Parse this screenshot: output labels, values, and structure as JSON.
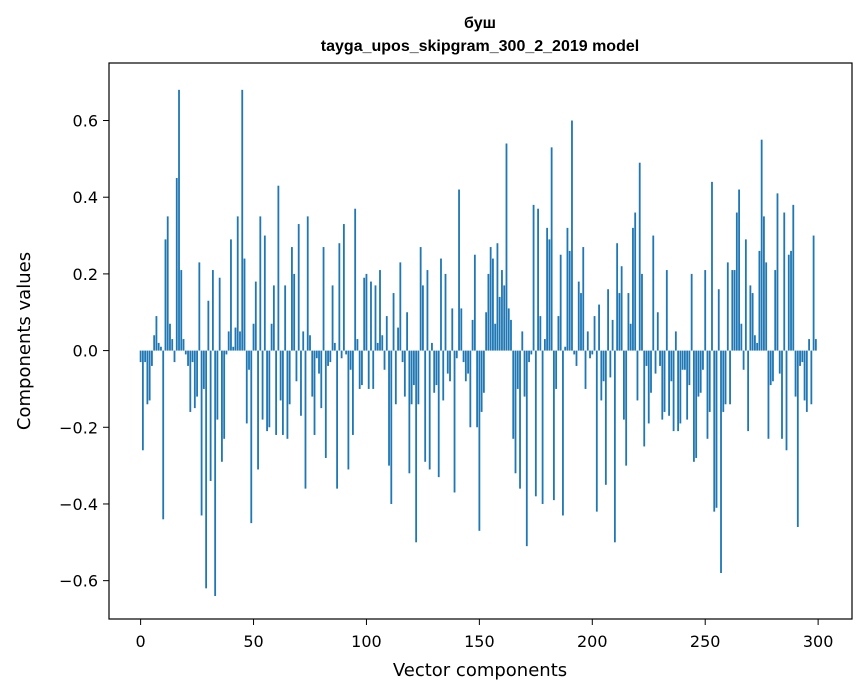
{
  "chart_data": {
    "type": "bar",
    "title": "буш",
    "subtitle": "tayga_upos_skipgram_300_2_2019 model",
    "xlabel": "Vector components",
    "ylabel": "Components values",
    "xlim": [
      -14,
      315
    ],
    "ylim": [
      -0.7,
      0.75
    ],
    "x_ticks": [
      {
        "value": 0,
        "label": "0"
      },
      {
        "value": 50,
        "label": "50"
      },
      {
        "value": 100,
        "label": "100"
      },
      {
        "value": 150,
        "label": "150"
      },
      {
        "value": 200,
        "label": "200"
      },
      {
        "value": 250,
        "label": "250"
      },
      {
        "value": 300,
        "label": "300"
      }
    ],
    "y_ticks": [
      {
        "value": -0.6,
        "label": "−0.6"
      },
      {
        "value": -0.4,
        "label": "−0.4"
      },
      {
        "value": -0.2,
        "label": "−0.2"
      },
      {
        "value": 0.0,
        "label": "0.0"
      },
      {
        "value": 0.2,
        "label": "0.2"
      },
      {
        "value": 0.4,
        "label": "0.4"
      },
      {
        "value": 0.6,
        "label": "0.6"
      }
    ],
    "grid": false,
    "bar_color": "#1f77b4",
    "values": [
      -0.03,
      -0.26,
      -0.03,
      -0.14,
      -0.13,
      -0.04,
      0.04,
      0.09,
      0.02,
      0.01,
      -0.44,
      0.29,
      0.35,
      0.07,
      0.03,
      -0.03,
      0.45,
      0.68,
      0.21,
      0.03,
      -0.01,
      -0.04,
      -0.16,
      -0.03,
      -0.15,
      -0.12,
      0.23,
      -0.43,
      -0.1,
      -0.62,
      0.13,
      -0.34,
      0.21,
      -0.64,
      -0.18,
      0.19,
      -0.29,
      -0.23,
      -0.01,
      0.05,
      0.29,
      0.01,
      0.06,
      0.35,
      0.05,
      0.68,
      0.24,
      -0.19,
      -0.05,
      -0.45,
      0.07,
      0.18,
      -0.31,
      0.35,
      -0.18,
      0.3,
      -0.21,
      -0.2,
      0.07,
      0.17,
      -0.22,
      0.43,
      -0.13,
      -0.22,
      0.17,
      -0.23,
      -0.14,
      0.27,
      0.2,
      -0.08,
      0.33,
      -0.17,
      0.05,
      -0.36,
      0.35,
      0.04,
      -0.12,
      -0.22,
      -0.02,
      -0.06,
      -0.15,
      0.27,
      -0.28,
      -0.04,
      -0.03,
      0.17,
      0.02,
      -0.36,
      0.28,
      -0.02,
      0.33,
      -0.01,
      -0.31,
      -0.05,
      -0.22,
      0.37,
      0.03,
      -0.1,
      -0.09,
      0.19,
      0.2,
      -0.1,
      0.18,
      -0.1,
      0.17,
      0.02,
      0.21,
      0.04,
      -0.05,
      0.09,
      -0.3,
      -0.4,
      0.15,
      -0.14,
      0.06,
      0.23,
      -0.03,
      -0.12,
      0.1,
      -0.32,
      -0.14,
      -0.09,
      -0.5,
      -0.14,
      0.27,
      0.17,
      -0.29,
      0.21,
      -0.31,
      0.02,
      -0.11,
      -0.09,
      -0.33,
      0.24,
      -0.13,
      0.2,
      -0.06,
      -0.08,
      0.11,
      -0.37,
      -0.02,
      0.42,
      0.11,
      -0.03,
      -0.08,
      -0.06,
      -0.2,
      0.08,
      0.25,
      -0.2,
      -0.47,
      -0.16,
      -0.11,
      0.1,
      0.2,
      0.27,
      0.24,
      0.07,
      0.28,
      0.14,
      0.21,
      0.17,
      0.54,
      0.11,
      0.08,
      -0.23,
      -0.32,
      -0.1,
      -0.36,
      0.05,
      -0.12,
      -0.51,
      -0.03,
      -0.01,
      0.38,
      -0.38,
      0.37,
      0.09,
      -0.4,
      0.03,
      0.32,
      0.29,
      0.53,
      -0.39,
      -0.1,
      0.09,
      0.25,
      -0.43,
      0.01,
      0.32,
      0.26,
      0.6,
      -0.01,
      -0.04,
      0.18,
      0.15,
      0.27,
      -0.1,
      0.05,
      -0.02,
      -0.01,
      0.09,
      -0.42,
      0.12,
      -0.13,
      -0.08,
      -0.35,
      0.16,
      -0.07,
      0.08,
      -0.5,
      0.28,
      0.15,
      0.22,
      -0.18,
      -0.3,
      0.15,
      0.07,
      0.32,
      0.36,
      -0.13,
      0.49,
      0.2,
      -0.25,
      -0.04,
      -0.19,
      -0.11,
      0.3,
      -0.06,
      0.1,
      -0.04,
      -0.18,
      -0.16,
      0.21,
      -0.17,
      -0.08,
      -0.21,
      0.05,
      -0.21,
      -0.19,
      -0.05,
      -0.05,
      -0.18,
      -0.09,
      0.2,
      -0.29,
      -0.28,
      -0.12,
      -0.11,
      -0.05,
      0.21,
      -0.23,
      -0.16,
      0.44,
      -0.42,
      -0.41,
      0.16,
      -0.58,
      -0.16,
      -0.14,
      0.23,
      -0.14,
      0.21,
      0.21,
      0.36,
      0.42,
      0.07,
      -0.05,
      0.29,
      -0.21,
      0.17,
      0.15,
      0.04,
      0.02,
      0.26,
      0.55,
      0.35,
      0.23,
      -0.23,
      -0.09,
      -0.08,
      0.21,
      0.41,
      -0.06,
      -0.23,
      0.36,
      -0.26,
      0.25,
      0.26,
      0.38,
      -0.12,
      -0.46,
      -0.04,
      -0.03,
      -0.13,
      -0.16,
      0.03,
      -0.14,
      0.3,
      0.03
    ]
  }
}
